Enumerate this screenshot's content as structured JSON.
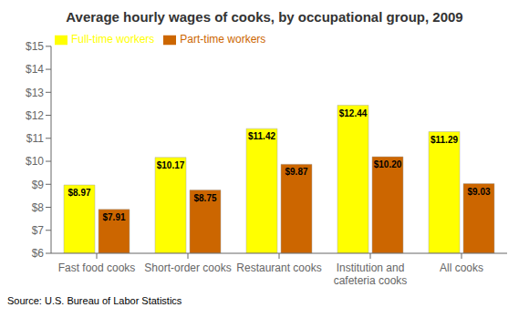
{
  "chart_data": {
    "type": "bar",
    "title": "Average hourly wages of cooks, by occupational group, 2009",
    "categories": [
      "Fast food cooks",
      "Short-order cooks",
      "Restaurant cooks",
      "Institution and\ncafeteria cooks",
      "All cooks"
    ],
    "series": [
      {
        "name": "Full-time workers",
        "color": "#ffff00",
        "values": [
          8.97,
          10.17,
          11.42,
          12.44,
          11.29
        ],
        "value_labels": [
          "$8.97",
          "$10.17",
          "$11.42",
          "$12.44",
          "$11.29"
        ]
      },
      {
        "name": "Part-time workers",
        "color": "#cc6600",
        "values": [
          7.91,
          8.75,
          9.87,
          10.2,
          9.03
        ],
        "value_labels": [
          "$7.91",
          "$8.75",
          "$9.87",
          "$10.20",
          "$9.03"
        ]
      }
    ],
    "ylim": [
      6,
      15
    ],
    "yticks": [
      {
        "value": 6,
        "label": "$6"
      },
      {
        "value": 7,
        "label": "$7"
      },
      {
        "value": 8,
        "label": "$8"
      },
      {
        "value": 9,
        "label": "$9"
      },
      {
        "value": 10,
        "label": "$10"
      },
      {
        "value": 11,
        "label": "$11"
      },
      {
        "value": 12,
        "label": "$12"
      },
      {
        "value": 13,
        "label": "$13"
      },
      {
        "value": 14,
        "label": "$14"
      },
      {
        "value": 15,
        "label": "$15"
      }
    ],
    "data_labels": true,
    "legend": "upper left",
    "grid": false,
    "annotations": [
      "Source: U.S. Bureau of Labor Statistics"
    ]
  }
}
